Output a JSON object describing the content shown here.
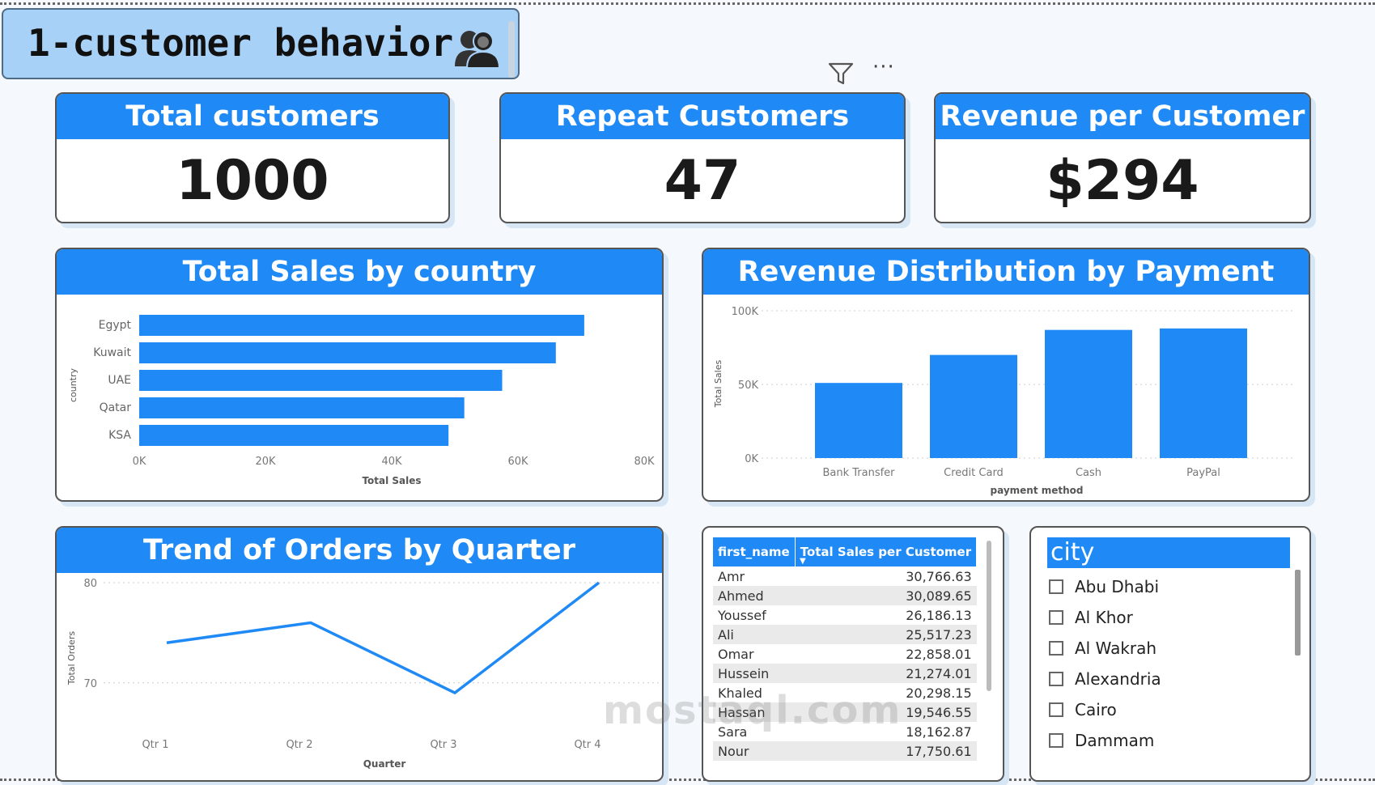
{
  "page": {
    "title": "1-customer behavior",
    "title_icon": "people-icon",
    "watermark": "mostaql.com",
    "accent": "#1f8af5"
  },
  "toolbar": {
    "filter_icon": "filter-icon",
    "more_label": "···"
  },
  "kpis": [
    {
      "label": "Total customers",
      "value": "1000"
    },
    {
      "label": "Repeat Customers",
      "value": "47"
    },
    {
      "label": "Revenue per Customer",
      "value": "$294"
    }
  ],
  "charts": {
    "sales_by_country": {
      "title": "Total Sales by country"
    },
    "revenue_by_payment": {
      "title": "Revenue Distribution by Payment Type"
    },
    "orders_by_quarter": {
      "title": "Trend of Orders by Quarter"
    }
  },
  "chart_data": [
    {
      "type": "bar",
      "orientation": "horizontal",
      "title": "Total Sales by country",
      "categories": [
        "Egypt",
        "Kuwait",
        "UAE",
        "Qatar",
        "KSA"
      ],
      "values": [
        70500,
        66000,
        57500,
        51500,
        49000
      ],
      "xlabel": "Total Sales",
      "ylabel": "country",
      "xlim": [
        0,
        80000
      ],
      "ticks": [
        "0K",
        "20K",
        "40K",
        "60K",
        "80K"
      ],
      "grid": false
    },
    {
      "type": "bar",
      "title": "Revenue Distribution by Payment Type",
      "categories": [
        "Bank Transfer",
        "Credit Card",
        "Cash",
        "PayPal"
      ],
      "values": [
        51000,
        70000,
        87000,
        88000
      ],
      "xlabel": "payment method",
      "ylabel": "Total Sales",
      "ylim": [
        0,
        100000
      ],
      "ticks": [
        "0K",
        "50K",
        "100K"
      ],
      "grid": true
    },
    {
      "type": "line",
      "title": "Trend of Orders by Quarter",
      "categories": [
        "Qtr 1",
        "Qtr 2",
        "Qtr 3",
        "Qtr 4"
      ],
      "values": [
        74,
        76,
        69,
        80
      ],
      "xlabel": "Quarter",
      "ylabel": "Total Orders",
      "ylim": [
        64,
        80
      ],
      "ticks": [
        "70",
        "80"
      ],
      "grid": true
    }
  ],
  "table": {
    "columns": [
      "first_name",
      "Total Sales per Customer"
    ],
    "rows": [
      [
        "Amr",
        "30,766.63"
      ],
      [
        "Ahmed",
        "30,089.65"
      ],
      [
        "Youssef",
        "26,186.13"
      ],
      [
        "Ali",
        "25,517.23"
      ],
      [
        "Omar",
        "22,858.01"
      ],
      [
        "Hussein",
        "21,274.01"
      ],
      [
        "Khaled",
        "20,298.15"
      ],
      [
        "Hassan",
        "19,546.55"
      ],
      [
        "Sara",
        "18,162.87"
      ],
      [
        "Nour",
        "17,750.61"
      ]
    ]
  },
  "slicer": {
    "title": "city",
    "items": [
      "Abu Dhabi",
      "Al Khor",
      "Al Wakrah",
      "Alexandria",
      "Cairo",
      "Dammam"
    ]
  }
}
